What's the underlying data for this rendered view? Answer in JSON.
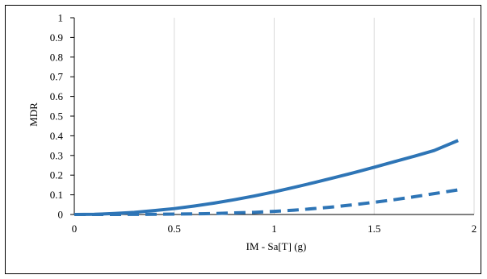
{
  "chart_data": {
    "type": "line",
    "title": "",
    "xlabel": "IM - Sa[T] (g)",
    "ylabel": "MDR",
    "xlim": [
      0,
      2
    ],
    "ylim": [
      0,
      1
    ],
    "x_ticks": [
      "0",
      "0.5",
      "1",
      "1.5",
      "2"
    ],
    "y_ticks": [
      "0",
      "0.1",
      "0.2",
      "0.3",
      "0.4",
      "0.5",
      "0.6",
      "0.7",
      "0.8",
      "0.9",
      "1"
    ],
    "grid": "vertical",
    "legend": "none",
    "series": [
      {
        "style": "solid",
        "color": "#2E75B6",
        "x": [
          0,
          0.1,
          0.2,
          0.3,
          0.4,
          0.5,
          0.6,
          0.7,
          0.8,
          0.9,
          1.0,
          1.1,
          1.2,
          1.3,
          1.4,
          1.5,
          1.6,
          1.7,
          1.8,
          1.92
        ],
        "y": [
          0,
          0.001,
          0.005,
          0.011,
          0.02,
          0.03,
          0.043,
          0.058,
          0.075,
          0.094,
          0.115,
          0.138,
          0.162,
          0.187,
          0.213,
          0.24,
          0.268,
          0.296,
          0.325,
          0.376
        ]
      },
      {
        "style": "dashed",
        "color": "#2E75B6",
        "x": [
          0,
          0.2,
          0.4,
          0.6,
          0.7,
          0.8,
          0.9,
          1.0,
          1.1,
          1.2,
          1.3,
          1.4,
          1.5,
          1.6,
          1.7,
          1.8,
          1.92
        ],
        "y": [
          0,
          0,
          0.001,
          0.003,
          0.005,
          0.008,
          0.011,
          0.016,
          0.022,
          0.03,
          0.039,
          0.05,
          0.062,
          0.075,
          0.09,
          0.106,
          0.125
        ]
      }
    ]
  }
}
